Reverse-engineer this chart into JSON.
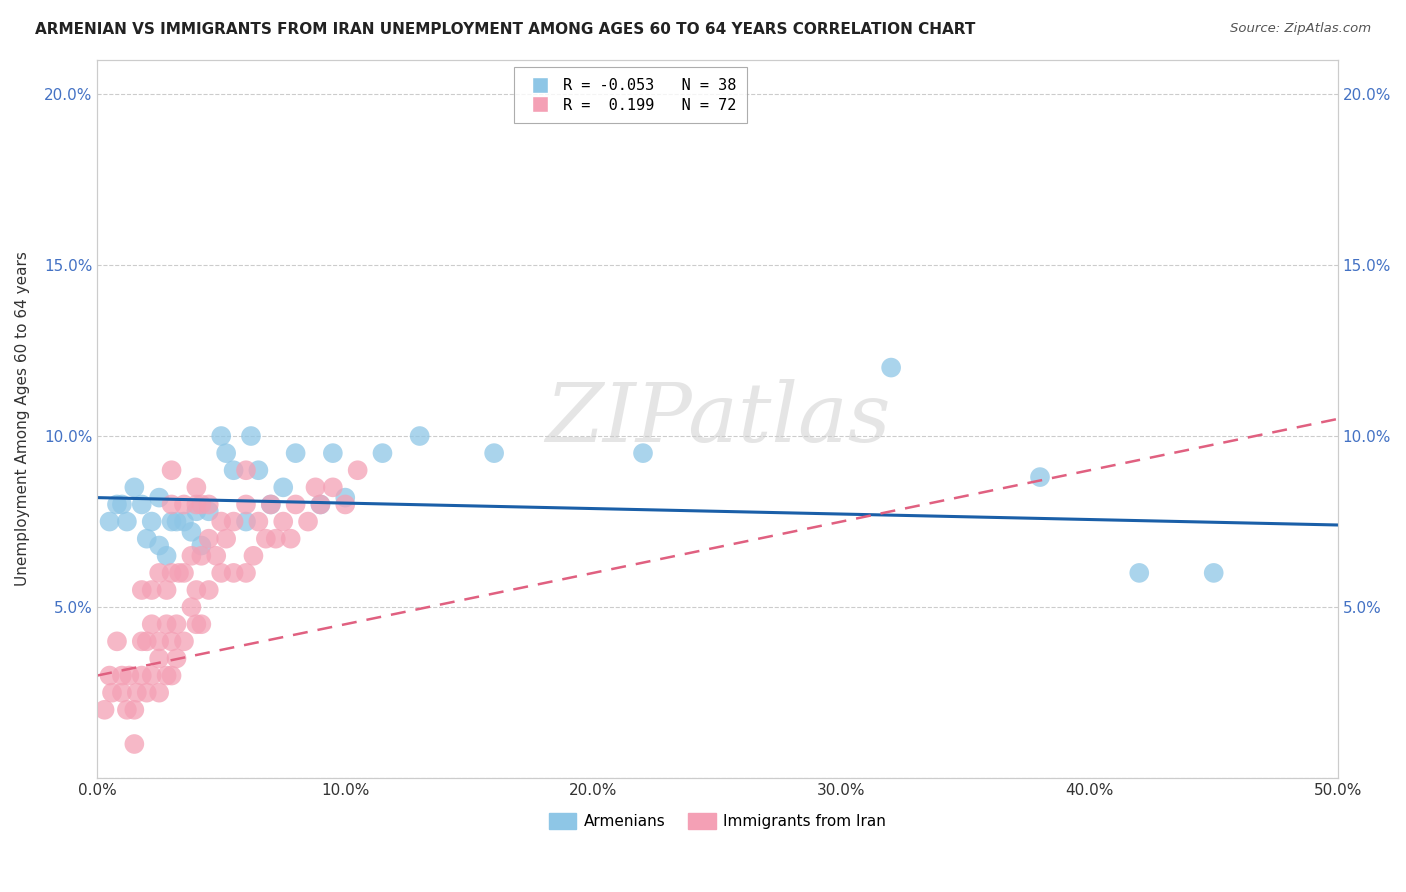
{
  "title": "ARMENIAN VS IMMIGRANTS FROM IRAN UNEMPLOYMENT AMONG AGES 60 TO 64 YEARS CORRELATION CHART",
  "source": "Source: ZipAtlas.com",
  "ylabel": "Unemployment Among Ages 60 to 64 years",
  "xlim": [
    0.0,
    0.5
  ],
  "ylim": [
    0.0,
    0.21
  ],
  "xticks": [
    0.0,
    0.1,
    0.2,
    0.3,
    0.4,
    0.5
  ],
  "yticks": [
    0.0,
    0.05,
    0.1,
    0.15,
    0.2
  ],
  "xtick_labels": [
    "0.0%",
    "10.0%",
    "20.0%",
    "30.0%",
    "40.0%",
    "50.0%"
  ],
  "ytick_labels": [
    "",
    "5.0%",
    "10.0%",
    "15.0%",
    "20.0%"
  ],
  "color_armenian": "#8ec6e6",
  "color_iran": "#f4a0b5",
  "trendline_armenian": "#1a5fa8",
  "trendline_iran": "#e06080",
  "R_armenian": -0.053,
  "N_armenian": 38,
  "R_iran": 0.199,
  "N_iran": 72,
  "watermark": "ZIPatlas",
  "legend_armenian": "Armenians",
  "legend_iran": "Immigrants from Iran",
  "armenian_x": [
    0.005,
    0.008,
    0.01,
    0.012,
    0.015,
    0.018,
    0.02,
    0.022,
    0.025,
    0.025,
    0.028,
    0.03,
    0.032,
    0.035,
    0.038,
    0.04,
    0.042,
    0.045,
    0.05,
    0.052,
    0.055,
    0.06,
    0.062,
    0.065,
    0.07,
    0.075,
    0.08,
    0.09,
    0.095,
    0.1,
    0.115,
    0.13,
    0.16,
    0.22,
    0.32,
    0.38,
    0.42,
    0.45
  ],
  "armenian_y": [
    0.075,
    0.08,
    0.08,
    0.075,
    0.085,
    0.08,
    0.07,
    0.075,
    0.082,
    0.068,
    0.065,
    0.075,
    0.075,
    0.075,
    0.072,
    0.078,
    0.068,
    0.078,
    0.1,
    0.095,
    0.09,
    0.075,
    0.1,
    0.09,
    0.08,
    0.085,
    0.095,
    0.08,
    0.095,
    0.082,
    0.095,
    0.1,
    0.095,
    0.095,
    0.12,
    0.088,
    0.06,
    0.06
  ],
  "iran_x": [
    0.003,
    0.005,
    0.006,
    0.008,
    0.01,
    0.01,
    0.012,
    0.013,
    0.015,
    0.015,
    0.016,
    0.018,
    0.018,
    0.018,
    0.02,
    0.02,
    0.022,
    0.022,
    0.022,
    0.025,
    0.025,
    0.025,
    0.025,
    0.028,
    0.028,
    0.028,
    0.03,
    0.03,
    0.03,
    0.03,
    0.03,
    0.032,
    0.032,
    0.033,
    0.035,
    0.035,
    0.035,
    0.038,
    0.038,
    0.04,
    0.04,
    0.04,
    0.04,
    0.042,
    0.042,
    0.042,
    0.045,
    0.045,
    0.045,
    0.048,
    0.05,
    0.05,
    0.052,
    0.055,
    0.055,
    0.06,
    0.06,
    0.06,
    0.063,
    0.065,
    0.068,
    0.07,
    0.072,
    0.075,
    0.078,
    0.08,
    0.085,
    0.088,
    0.09,
    0.095,
    0.1,
    0.105
  ],
  "iran_y": [
    0.02,
    0.03,
    0.025,
    0.04,
    0.025,
    0.03,
    0.02,
    0.03,
    0.01,
    0.02,
    0.025,
    0.03,
    0.04,
    0.055,
    0.025,
    0.04,
    0.03,
    0.045,
    0.055,
    0.025,
    0.035,
    0.04,
    0.06,
    0.03,
    0.045,
    0.055,
    0.03,
    0.04,
    0.06,
    0.08,
    0.09,
    0.035,
    0.045,
    0.06,
    0.04,
    0.06,
    0.08,
    0.05,
    0.065,
    0.045,
    0.055,
    0.08,
    0.085,
    0.045,
    0.065,
    0.08,
    0.055,
    0.07,
    0.08,
    0.065,
    0.06,
    0.075,
    0.07,
    0.06,
    0.075,
    0.06,
    0.08,
    0.09,
    0.065,
    0.075,
    0.07,
    0.08,
    0.07,
    0.075,
    0.07,
    0.08,
    0.075,
    0.085,
    0.08,
    0.085,
    0.08,
    0.09
  ],
  "armenian_trendline_x": [
    0.0,
    0.5
  ],
  "armenian_trendline_y": [
    0.082,
    0.074
  ],
  "iran_trendline_x": [
    0.0,
    0.5
  ],
  "iran_trendline_y": [
    0.03,
    0.105
  ]
}
